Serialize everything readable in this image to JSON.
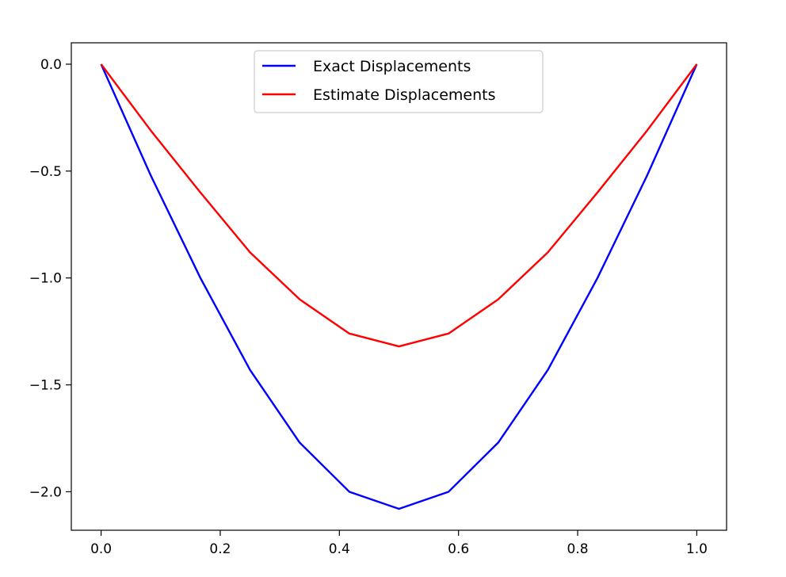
{
  "chart_data": {
    "type": "line",
    "title": "",
    "xlabel": "",
    "ylabel": "",
    "xlim": [
      -0.05,
      1.05
    ],
    "ylim": [
      -2.18,
      0.1
    ],
    "xticks": [
      0.0,
      0.2,
      0.4,
      0.6,
      0.8,
      1.0
    ],
    "xtick_labels": [
      "0.0",
      "0.2",
      "0.4",
      "0.6",
      "0.8",
      "1.0"
    ],
    "yticks": [
      0.0,
      -0.5,
      -1.0,
      -1.5,
      -2.0
    ],
    "ytick_labels": [
      "0.0",
      "−0.5",
      "−1.0",
      "−1.5",
      "−2.0"
    ],
    "grid": false,
    "legend": "upper-center",
    "x": [
      0.0,
      0.0833,
      0.1667,
      0.25,
      0.3333,
      0.4167,
      0.5,
      0.5833,
      0.6667,
      0.75,
      0.8333,
      0.9167,
      1.0
    ],
    "series": [
      {
        "name": "Exact Displacements",
        "color": "#0000ff",
        "values": [
          0.0,
          -0.52,
          -1.0,
          -1.43,
          -1.77,
          -2.0,
          -2.08,
          -2.0,
          -1.77,
          -1.43,
          -1.0,
          -0.52,
          0.0
        ]
      },
      {
        "name": "Estimate Displacements",
        "color": "#ff0000",
        "values": [
          0.0,
          -0.31,
          -0.6,
          -0.88,
          -1.1,
          -1.26,
          -1.32,
          -1.26,
          -1.1,
          -0.88,
          -0.6,
          -0.31,
          0.0
        ]
      }
    ]
  }
}
